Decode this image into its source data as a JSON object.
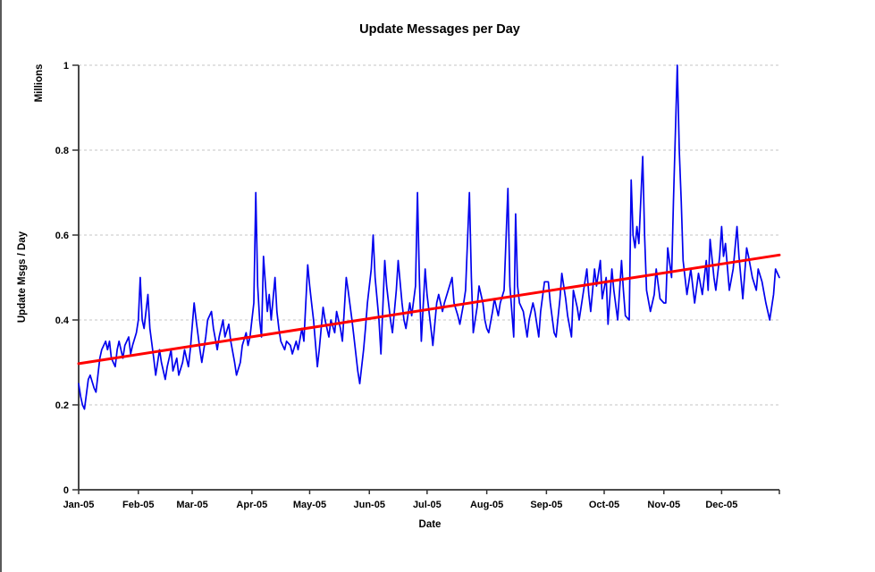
{
  "window": {
    "background": "#ffffff",
    "edge_color": "#5a5a5a"
  },
  "chart_data": {
    "type": "line",
    "title": "Update Messages per Day",
    "xlabel": "Date",
    "ylabel": "Update Msgs / Day",
    "y_units_label": "Millions",
    "ylim": [
      0,
      1
    ],
    "x_axis_end_day": 364,
    "grid": true,
    "legend_position": "none",
    "colors": {
      "series": "#0000ee",
      "trend": "#ff0000",
      "gridline": "#c6c6c6",
      "axis": "#333333",
      "text": "#000000"
    },
    "y_ticks": [
      {
        "value": 0,
        "label": "0"
      },
      {
        "value": 0.2,
        "label": "0.2"
      },
      {
        "value": 0.4,
        "label": "0.4"
      },
      {
        "value": 0.6,
        "label": "0.6"
      },
      {
        "value": 0.8,
        "label": "0.8"
      },
      {
        "value": 1,
        "label": "1"
      }
    ],
    "x_ticks": [
      {
        "day": 0,
        "label": "Jan-05"
      },
      {
        "day": 31,
        "label": "Feb-05"
      },
      {
        "day": 59,
        "label": "Mar-05"
      },
      {
        "day": 90,
        "label": "Apr-05"
      },
      {
        "day": 120,
        "label": "May-05"
      },
      {
        "day": 151,
        "label": "Jun-05"
      },
      {
        "day": 181,
        "label": "Jul-05"
      },
      {
        "day": 212,
        "label": "Aug-05"
      },
      {
        "day": 243,
        "label": "Sep-05"
      },
      {
        "day": 273,
        "label": "Oct-05"
      },
      {
        "day": 304,
        "label": "Nov-05"
      },
      {
        "day": 334,
        "label": "Dec-05"
      },
      {
        "day": 364,
        "label": ""
      }
    ],
    "series": [
      {
        "name": "update-messages-per-day",
        "color": "#0000ee",
        "width": 1.7,
        "points": [
          [
            0,
            0.25
          ],
          [
            1,
            0.22
          ],
          [
            2,
            0.2
          ],
          [
            3,
            0.19
          ],
          [
            5,
            0.26
          ],
          [
            6,
            0.27
          ],
          [
            8,
            0.24
          ],
          [
            9,
            0.23
          ],
          [
            11,
            0.31
          ],
          [
            12,
            0.33
          ],
          [
            14,
            0.35
          ],
          [
            15,
            0.33
          ],
          [
            16,
            0.35
          ],
          [
            17,
            0.31
          ],
          [
            19,
            0.29
          ],
          [
            20,
            0.33
          ],
          [
            21,
            0.35
          ],
          [
            23,
            0.31
          ],
          [
            24,
            0.34
          ],
          [
            26,
            0.36
          ],
          [
            27,
            0.32
          ],
          [
            28,
            0.34
          ],
          [
            30,
            0.37
          ],
          [
            31,
            0.4
          ],
          [
            32,
            0.5
          ],
          [
            33,
            0.4
          ],
          [
            34,
            0.38
          ],
          [
            36,
            0.46
          ],
          [
            37,
            0.38
          ],
          [
            39,
            0.31
          ],
          [
            40,
            0.27
          ],
          [
            42,
            0.33
          ],
          [
            43,
            0.3
          ],
          [
            45,
            0.26
          ],
          [
            46,
            0.29
          ],
          [
            48,
            0.33
          ],
          [
            49,
            0.28
          ],
          [
            51,
            0.31
          ],
          [
            52,
            0.27
          ],
          [
            54,
            0.3
          ],
          [
            55,
            0.33
          ],
          [
            57,
            0.29
          ],
          [
            58,
            0.33
          ],
          [
            60,
            0.44
          ],
          [
            61,
            0.4
          ],
          [
            63,
            0.33
          ],
          [
            64,
            0.3
          ],
          [
            66,
            0.36
          ],
          [
            67,
            0.4
          ],
          [
            69,
            0.42
          ],
          [
            70,
            0.38
          ],
          [
            72,
            0.33
          ],
          [
            73,
            0.36
          ],
          [
            75,
            0.4
          ],
          [
            76,
            0.36
          ],
          [
            78,
            0.39
          ],
          [
            79,
            0.35
          ],
          [
            81,
            0.3
          ],
          [
            82,
            0.27
          ],
          [
            84,
            0.3
          ],
          [
            85,
            0.34
          ],
          [
            87,
            0.37
          ],
          [
            88,
            0.34
          ],
          [
            89,
            0.36
          ],
          [
            91,
            0.44
          ],
          [
            92,
            0.7
          ],
          [
            93,
            0.48
          ],
          [
            94,
            0.4
          ],
          [
            95,
            0.36
          ],
          [
            96,
            0.55
          ],
          [
            98,
            0.42
          ],
          [
            99,
            0.46
          ],
          [
            100,
            0.4
          ],
          [
            102,
            0.5
          ],
          [
            103,
            0.42
          ],
          [
            104,
            0.38
          ],
          [
            105,
            0.35
          ],
          [
            107,
            0.33
          ],
          [
            108,
            0.35
          ],
          [
            110,
            0.34
          ],
          [
            111,
            0.32
          ],
          [
            113,
            0.35
          ],
          [
            114,
            0.33
          ],
          [
            116,
            0.38
          ],
          [
            117,
            0.35
          ],
          [
            119,
            0.53
          ],
          [
            120,
            0.48
          ],
          [
            121,
            0.44
          ],
          [
            122,
            0.4
          ],
          [
            124,
            0.29
          ],
          [
            125,
            0.33
          ],
          [
            127,
            0.43
          ],
          [
            128,
            0.4
          ],
          [
            130,
            0.36
          ],
          [
            131,
            0.4
          ],
          [
            133,
            0.37
          ],
          [
            134,
            0.42
          ],
          [
            136,
            0.38
          ],
          [
            137,
            0.35
          ],
          [
            139,
            0.5
          ],
          [
            140,
            0.47
          ],
          [
            142,
            0.4
          ],
          [
            143,
            0.36
          ],
          [
            145,
            0.28
          ],
          [
            146,
            0.25
          ],
          [
            148,
            0.33
          ],
          [
            149,
            0.38
          ],
          [
            150,
            0.44
          ],
          [
            152,
            0.52
          ],
          [
            153,
            0.6
          ],
          [
            154,
            0.5
          ],
          [
            156,
            0.4
          ],
          [
            157,
            0.32
          ],
          [
            159,
            0.54
          ],
          [
            160,
            0.48
          ],
          [
            162,
            0.4
          ],
          [
            163,
            0.37
          ],
          [
            165,
            0.47
          ],
          [
            166,
            0.54
          ],
          [
            168,
            0.44
          ],
          [
            169,
            0.4
          ],
          [
            170,
            0.38
          ],
          [
            172,
            0.44
          ],
          [
            173,
            0.41
          ],
          [
            175,
            0.48
          ],
          [
            176,
            0.7
          ],
          [
            177,
            0.5
          ],
          [
            178,
            0.35
          ],
          [
            180,
            0.52
          ],
          [
            181,
            0.46
          ],
          [
            183,
            0.38
          ],
          [
            184,
            0.34
          ],
          [
            186,
            0.44
          ],
          [
            187,
            0.46
          ],
          [
            189,
            0.42
          ],
          [
            190,
            0.44
          ],
          [
            192,
            0.47
          ],
          [
            194,
            0.5
          ],
          [
            195,
            0.44
          ],
          [
            197,
            0.41
          ],
          [
            198,
            0.39
          ],
          [
            200,
            0.44
          ],
          [
            201,
            0.47
          ],
          [
            203,
            0.7
          ],
          [
            204,
            0.5
          ],
          [
            205,
            0.37
          ],
          [
            207,
            0.43
          ],
          [
            208,
            0.48
          ],
          [
            210,
            0.44
          ],
          [
            211,
            0.4
          ],
          [
            212,
            0.38
          ],
          [
            213,
            0.37
          ],
          [
            215,
            0.42
          ],
          [
            216,
            0.45
          ],
          [
            218,
            0.41
          ],
          [
            219,
            0.44
          ],
          [
            221,
            0.47
          ],
          [
            223,
            0.71
          ],
          [
            224,
            0.48
          ],
          [
            226,
            0.36
          ],
          [
            227,
            0.65
          ],
          [
            228,
            0.48
          ],
          [
            229,
            0.44
          ],
          [
            231,
            0.42
          ],
          [
            233,
            0.36
          ],
          [
            234,
            0.4
          ],
          [
            236,
            0.44
          ],
          [
            237,
            0.42
          ],
          [
            239,
            0.36
          ],
          [
            240,
            0.42
          ],
          [
            242,
            0.49
          ],
          [
            244,
            0.49
          ],
          [
            245,
            0.44
          ],
          [
            247,
            0.37
          ],
          [
            248,
            0.36
          ],
          [
            250,
            0.45
          ],
          [
            251,
            0.51
          ],
          [
            253,
            0.45
          ],
          [
            254,
            0.41
          ],
          [
            256,
            0.36
          ],
          [
            257,
            0.47
          ],
          [
            259,
            0.43
          ],
          [
            260,
            0.4
          ],
          [
            262,
            0.46
          ],
          [
            264,
            0.52
          ],
          [
            265,
            0.46
          ],
          [
            266,
            0.42
          ],
          [
            268,
            0.52
          ],
          [
            269,
            0.48
          ],
          [
            271,
            0.54
          ],
          [
            272,
            0.45
          ],
          [
            274,
            0.5
          ],
          [
            275,
            0.39
          ],
          [
            277,
            0.52
          ],
          [
            278,
            0.47
          ],
          [
            280,
            0.4
          ],
          [
            282,
            0.54
          ],
          [
            283,
            0.47
          ],
          [
            284,
            0.41
          ],
          [
            286,
            0.4
          ],
          [
            287,
            0.73
          ],
          [
            288,
            0.6
          ],
          [
            289,
            0.57
          ],
          [
            290,
            0.62
          ],
          [
            291,
            0.58
          ],
          [
            293,
            0.785
          ],
          [
            294,
            0.6
          ],
          [
            295,
            0.47
          ],
          [
            297,
            0.42
          ],
          [
            299,
            0.46
          ],
          [
            300,
            0.52
          ],
          [
            302,
            0.45
          ],
          [
            304,
            0.44
          ],
          [
            305,
            0.44
          ],
          [
            306,
            0.57
          ],
          [
            308,
            0.5
          ],
          [
            309,
            0.68
          ],
          [
            311,
            1.0
          ],
          [
            312,
            0.8
          ],
          [
            313,
            0.68
          ],
          [
            314,
            0.54
          ],
          [
            316,
            0.46
          ],
          [
            318,
            0.52
          ],
          [
            320,
            0.44
          ],
          [
            322,
            0.51
          ],
          [
            324,
            0.46
          ],
          [
            326,
            0.54
          ],
          [
            327,
            0.47
          ],
          [
            328,
            0.59
          ],
          [
            330,
            0.5
          ],
          [
            331,
            0.47
          ],
          [
            333,
            0.55
          ],
          [
            334,
            0.62
          ],
          [
            335,
            0.55
          ],
          [
            336,
            0.58
          ],
          [
            338,
            0.47
          ],
          [
            340,
            0.52
          ],
          [
            342,
            0.62
          ],
          [
            343,
            0.55
          ],
          [
            345,
            0.45
          ],
          [
            347,
            0.57
          ],
          [
            348,
            0.55
          ],
          [
            350,
            0.5
          ],
          [
            352,
            0.47
          ],
          [
            353,
            0.52
          ],
          [
            355,
            0.49
          ],
          [
            357,
            0.44
          ],
          [
            359,
            0.4
          ],
          [
            361,
            0.46
          ],
          [
            362,
            0.52
          ],
          [
            364,
            0.5
          ]
        ]
      },
      {
        "name": "linear-trend",
        "color": "#ff0000",
        "width": 3,
        "points": [
          [
            0,
            0.297
          ],
          [
            364,
            0.553
          ]
        ]
      }
    ]
  }
}
